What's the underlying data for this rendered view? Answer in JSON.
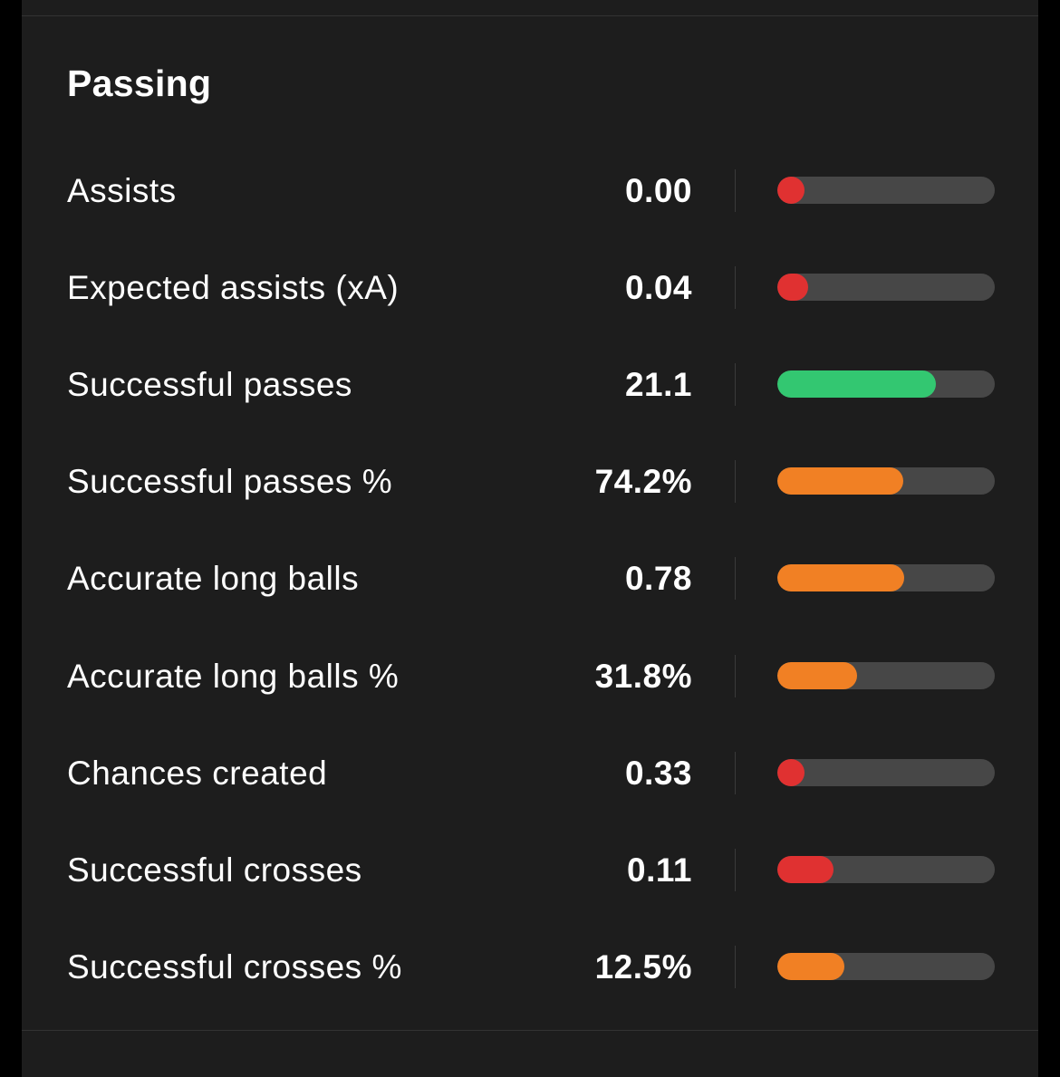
{
  "section": {
    "title": "Passing"
  },
  "colors": {
    "background": "#000000",
    "card": "#1d1d1d",
    "track": "#474747",
    "red": "#e03131",
    "orange": "#f18024",
    "green": "#33c771"
  },
  "stats": [
    {
      "label": "Assists",
      "value": "0.00",
      "fill_fraction": 0.125,
      "color": "#e03131"
    },
    {
      "label": "Expected assists (xA)",
      "value": "0.04",
      "fill_fraction": 0.14,
      "color": "#e03131"
    },
    {
      "label": "Successful passes",
      "value": "21.1",
      "fill_fraction": 0.73,
      "color": "#33c771"
    },
    {
      "label": "Successful passes %",
      "value": "74.2%",
      "fill_fraction": 0.58,
      "color": "#f18024"
    },
    {
      "label": "Accurate long balls",
      "value": "0.78",
      "fill_fraction": 0.585,
      "color": "#f18024"
    },
    {
      "label": "Accurate long balls %",
      "value": "31.8%",
      "fill_fraction": 0.365,
      "color": "#f18024"
    },
    {
      "label": "Chances created",
      "value": "0.33",
      "fill_fraction": 0.125,
      "color": "#e03131"
    },
    {
      "label": "Successful crosses",
      "value": "0.11",
      "fill_fraction": 0.26,
      "color": "#e03131"
    },
    {
      "label": "Successful crosses %",
      "value": "12.5%",
      "fill_fraction": 0.31,
      "color": "#f18024"
    }
  ]
}
